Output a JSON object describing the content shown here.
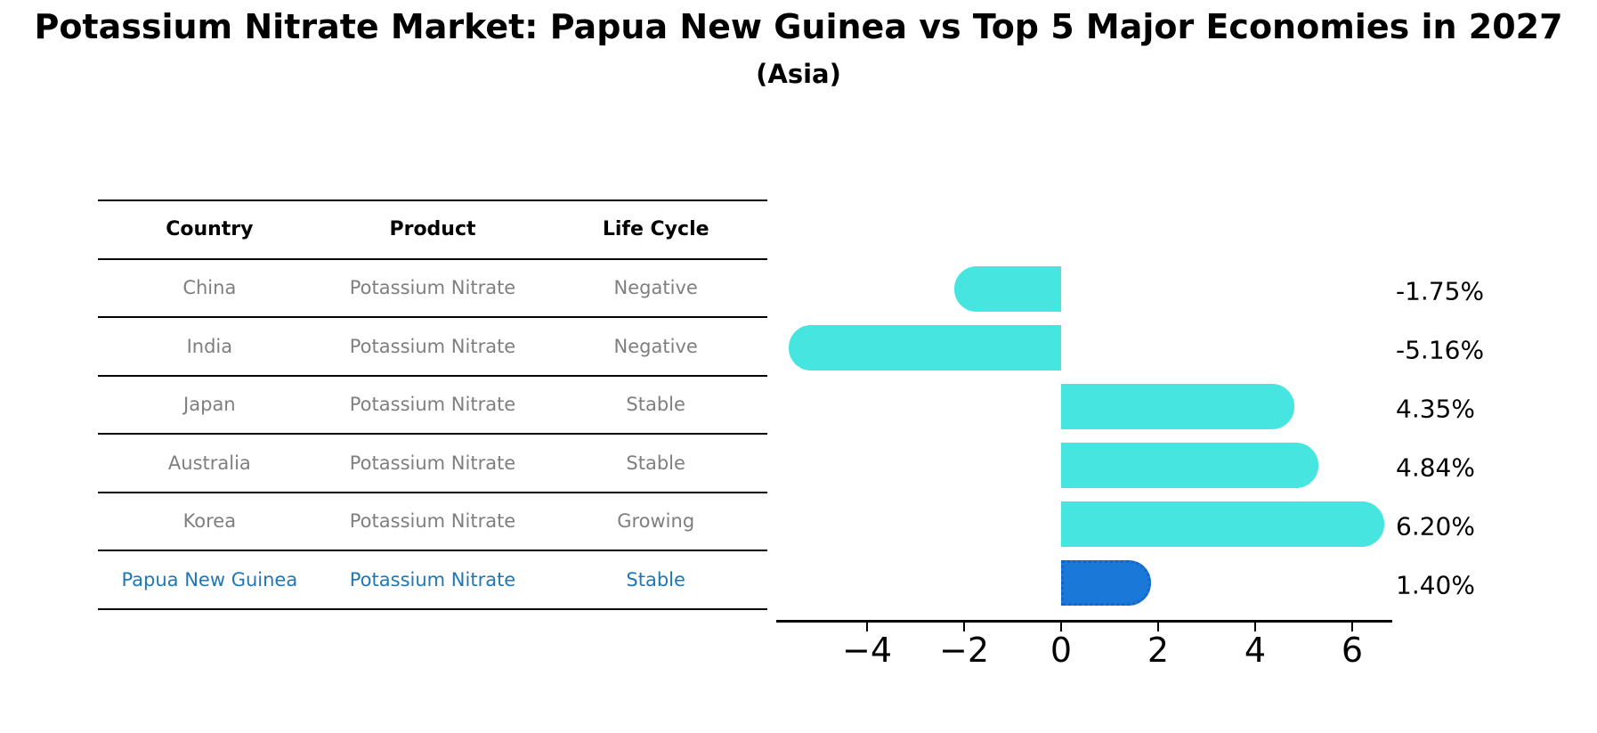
{
  "title": "Potassium Nitrate Market: Papua New Guinea vs Top 5 Major Economies in 2027",
  "subtitle": "(Asia)",
  "table": {
    "headers": [
      "Country",
      "Product",
      "Life Cycle"
    ],
    "rows": [
      {
        "country": "China",
        "product": "Potassium Nitrate",
        "life_cycle": "Negative"
      },
      {
        "country": "India",
        "product": "Potassium Nitrate",
        "life_cycle": "Negative"
      },
      {
        "country": "Japan",
        "product": "Potassium Nitrate",
        "life_cycle": "Stable"
      },
      {
        "country": "Australia",
        "product": "Potassium Nitrate",
        "life_cycle": "Stable"
      },
      {
        "country": "Korea",
        "product": "Potassium Nitrate",
        "life_cycle": "Growing"
      },
      {
        "country": "Papua New Guinea",
        "product": "Potassium Nitrate",
        "life_cycle": "Stable"
      }
    ],
    "highlight_row_index": 5
  },
  "chart_data": {
    "type": "bar",
    "orientation": "horizontal",
    "categories": [
      "China",
      "India",
      "Japan",
      "Australia",
      "Korea",
      "Papua New Guinea"
    ],
    "values": [
      -1.75,
      -5.16,
      4.35,
      4.84,
      6.2,
      1.4
    ],
    "value_labels": [
      "-1.75%",
      "-5.16%",
      "4.35%",
      "4.84%",
      "6.20%",
      "1.40%"
    ],
    "x_ticks": [
      -4,
      -2,
      0,
      2,
      4,
      6
    ],
    "x_tick_labels": [
      "−4",
      "−2",
      "0",
      "2",
      "4",
      "6"
    ],
    "xlim": [
      -5.9,
      6.8
    ],
    "grid": false,
    "legend": false,
    "highlight_index": 5,
    "bar_color": "#46e5e0",
    "highlight_bar_color": "#1a78d8",
    "highlight_border_color": "#1565c8",
    "highlight_text_color": "#1f77b4",
    "table_text_color": "#7f7f7f"
  }
}
